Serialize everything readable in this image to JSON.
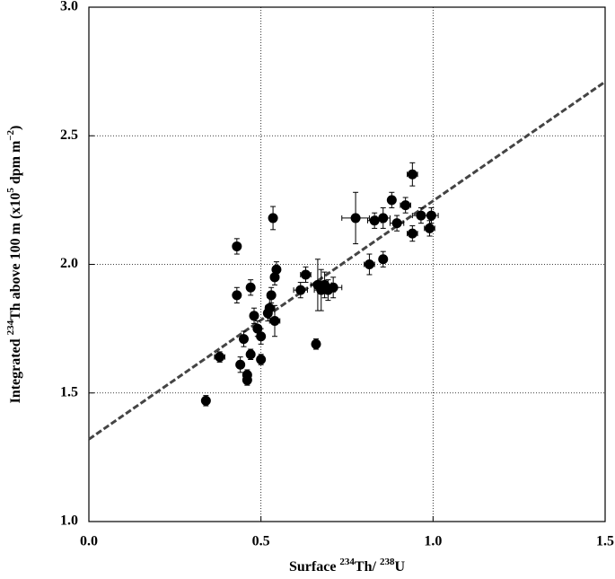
{
  "chart_data": {
    "type": "scatter",
    "x_label": [
      "Surface ",
      "234",
      "Th/ ",
      "238",
      "U"
    ],
    "y_label": [
      "Integrated ",
      "234",
      "Th above 100 m (x10",
      "5",
      " dpm m",
      "−2",
      ")"
    ],
    "xlim": [
      0,
      1.5
    ],
    "ylim": [
      1.0,
      3.0
    ],
    "xticks": [
      {
        "value": 0,
        "label": "0.0"
      },
      {
        "value": 0.5,
        "label": "0.5"
      },
      {
        "value": 1,
        "label": "1.0"
      },
      {
        "value": 1.5,
        "label": "1.5"
      }
    ],
    "yticks": [
      {
        "value": 1,
        "label": "1.0"
      },
      {
        "value": 1.5,
        "label": "1.5"
      },
      {
        "value": 2,
        "label": "2.0"
      },
      {
        "value": 2.5,
        "label": "2.5"
      },
      {
        "value": 3,
        "label": "3.0"
      }
    ],
    "grid": true,
    "series": [
      {
        "color": "#000000",
        "x": [
          0.34,
          0.38,
          0.43,
          0.43,
          0.44,
          0.45,
          0.46,
          0.46,
          0.47,
          0.47,
          0.48,
          0.49,
          0.5,
          0.5,
          0.52,
          0.525,
          0.53,
          0.535,
          0.54,
          0.545,
          0.54,
          0.615,
          0.63,
          0.66,
          0.665,
          0.675,
          0.685,
          0.695,
          0.71,
          0.775,
          0.815,
          0.83,
          0.855,
          0.855,
          0.88,
          0.895,
          0.92,
          0.94,
          0.94,
          0.965,
          0.99,
          0.995
        ],
        "y": [
          1.47,
          1.64,
          2.07,
          1.88,
          1.61,
          1.71,
          1.55,
          1.57,
          1.65,
          1.91,
          1.8,
          1.75,
          1.72,
          1.63,
          1.81,
          1.83,
          1.88,
          2.18,
          1.95,
          1.98,
          1.78,
          1.9,
          1.96,
          1.69,
          1.92,
          1.9,
          1.92,
          1.9,
          1.91,
          2.18,
          2.0,
          2.17,
          2.18,
          2.02,
          2.25,
          2.16,
          2.23,
          2.35,
          2.12,
          2.19,
          2.14,
          2.19
        ],
        "x_err": [
          0.01,
          0.015,
          0.01,
          0.01,
          0.01,
          0.01,
          0.01,
          0.01,
          0.01,
          0.01,
          0.01,
          0.01,
          0.01,
          0.01,
          0.01,
          0.01,
          0.01,
          0.01,
          0.01,
          0.01,
          0.015,
          0.02,
          0.015,
          0.01,
          0.02,
          0.02,
          0.02,
          0.02,
          0.025,
          0.04,
          0.015,
          0.02,
          0.02,
          0.01,
          0.01,
          0.02,
          0.015,
          0.015,
          0.015,
          0.025,
          0.015,
          0.02
        ],
        "y_err": [
          0.02,
          0.02,
          0.03,
          0.03,
          0.03,
          0.03,
          0.02,
          0.02,
          0.02,
          0.03,
          0.03,
          0.03,
          0.03,
          0.02,
          0.03,
          0.04,
          0.03,
          0.045,
          0.03,
          0.03,
          0.06,
          0.03,
          0.03,
          0.02,
          0.1,
          0.08,
          0.05,
          0.04,
          0.04,
          0.1,
          0.04,
          0.03,
          0.04,
          0.03,
          0.03,
          0.03,
          0.03,
          0.045,
          0.03,
          0.03,
          0.03,
          0.03
        ]
      }
    ],
    "fit_line": {
      "x": [
        0,
        1.5
      ],
      "y": [
        1.32,
        2.71
      ],
      "color": "#444444",
      "dashed": true
    }
  }
}
